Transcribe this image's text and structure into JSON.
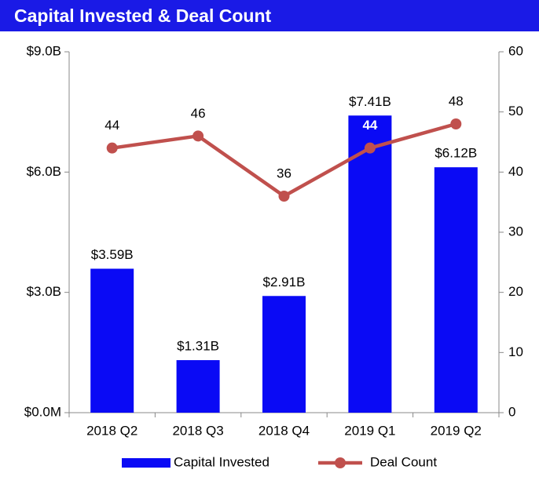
{
  "chart_data": {
    "type": "bar",
    "title": "Capital Invested & Deal Count",
    "categories": [
      "2018 Q2",
      "2018 Q3",
      "2018 Q4",
      "2019 Q1",
      "2019 Q2"
    ],
    "series": [
      {
        "name": "Capital Invested",
        "type": "bar",
        "color": "#0a0af5",
        "values": [
          3.59,
          1.31,
          2.91,
          7.41,
          6.12
        ],
        "value_labels": [
          "$3.59B",
          "$1.31B",
          "$2.91B",
          "$7.41B",
          "$6.12B"
        ]
      },
      {
        "name": "Deal Count",
        "type": "line",
        "color": "#c0504d",
        "axis": "y2",
        "values": [
          44,
          46,
          36,
          44,
          48
        ]
      }
    ],
    "ylim": [
      0,
      9
    ],
    "yticks": [
      {
        "value": 0,
        "label": "$0.0M"
      },
      {
        "value": 3,
        "label": "$3.0B"
      },
      {
        "value": 6,
        "label": "$6.0B"
      },
      {
        "value": 9,
        "label": "$9.0B"
      }
    ],
    "y2lim": [
      0,
      60
    ],
    "y2ticks": [
      0,
      10,
      20,
      30,
      40,
      50,
      60
    ],
    "grid": false,
    "legend": "bottom"
  }
}
